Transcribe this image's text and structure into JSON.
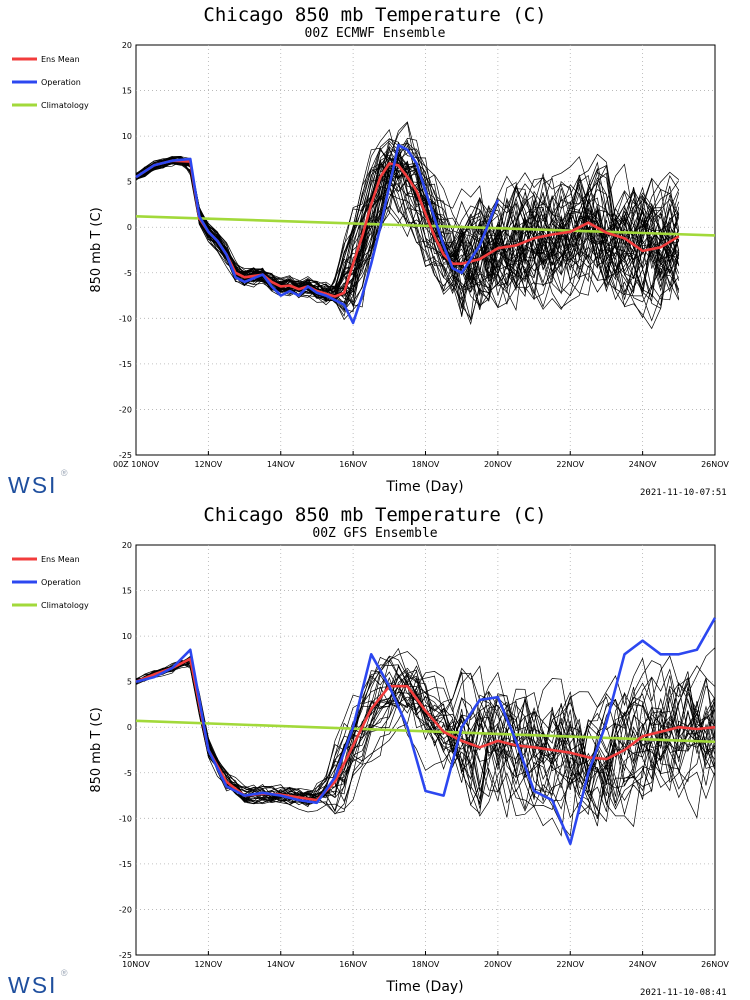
{
  "colors": {
    "ens_mean": "#f23c3c",
    "operation": "#2c47f0",
    "climatology": "#a2d93a",
    "members": "#000000",
    "grid": "#b0b0b0",
    "brand": "#1f4f9e"
  },
  "brand": {
    "logo_text": "WSI",
    "reg_mark": "®"
  },
  "chart_data": [
    {
      "type": "line",
      "title": "Chicago 850 mb Temperature (C)",
      "subtitle": "00Z ECMWF Ensemble",
      "xlabel": "Time (Day)",
      "ylabel": "850 mb T (C)",
      "x_tick_labels": [
        "00Z 10NOV",
        "12NOV",
        "14NOV",
        "16NOV",
        "18NOV",
        "20NOV",
        "22NOV",
        "24NOV",
        "26NOV"
      ],
      "x_tick_days": [
        10,
        12,
        14,
        16,
        18,
        20,
        22,
        24,
        26
      ],
      "xlim_days": [
        10,
        26
      ],
      "ylim": [
        -25,
        20
      ],
      "y_ticks": [
        -25,
        -20,
        -15,
        -10,
        -5,
        0,
        5,
        10,
        15,
        20
      ],
      "grid": true,
      "legend_position": "left",
      "timestamp": "2021-11-10-07:51",
      "members": {
        "count": 50,
        "end_day": 25,
        "last_lo_day": 15,
        "chaos_amp": 8,
        "seed": 11
      },
      "series": [
        {
          "name": "Ens Mean",
          "color_key": "ens_mean",
          "x": [
            10,
            10.5,
            11,
            11.5,
            11.75,
            12,
            12.25,
            12.5,
            12.75,
            13,
            13.5,
            13.75,
            14,
            14.25,
            14.5,
            14.75,
            15,
            15.25,
            15.5,
            15.75,
            16,
            16.25,
            16.5,
            16.75,
            17,
            17.25,
            17.5,
            17.75,
            18,
            18.25,
            18.5,
            18.75,
            19,
            19.5,
            20,
            20.5,
            21,
            21.5,
            22,
            22.5,
            23,
            23.5,
            24,
            24.5,
            25
          ],
          "y": [
            5.5,
            6.8,
            7.3,
            7.2,
            1,
            -0.5,
            -1.5,
            -3,
            -5,
            -5.5,
            -5.2,
            -6,
            -6.5,
            -6.4,
            -6.8,
            -6.5,
            -7,
            -7.3,
            -7.6,
            -7.2,
            -4,
            -1,
            2.5,
            5.5,
            7,
            6.8,
            5.5,
            4,
            1.5,
            -1,
            -3,
            -4,
            -4,
            -3.5,
            -2.3,
            -2,
            -1.2,
            -0.8,
            -0.5,
            0.5,
            -0.6,
            -1.2,
            -2.6,
            -2.2,
            -1
          ]
        },
        {
          "name": "Operation",
          "color_key": "operation",
          "x": [
            10,
            10.5,
            11,
            11.5,
            11.75,
            12,
            12.25,
            12.5,
            12.75,
            13,
            13.5,
            13.75,
            14,
            14.25,
            14.5,
            14.75,
            15,
            15.25,
            15.5,
            15.75,
            16,
            16.25,
            16.5,
            16.75,
            17,
            17.25,
            17.5,
            17.75,
            18,
            18.25,
            18.5,
            18.75,
            19,
            19.5,
            20
          ],
          "y": [
            5.5,
            6.8,
            7.3,
            7.5,
            1.2,
            -0.5,
            -1.5,
            -3,
            -5.5,
            -6,
            -5.2,
            -6.5,
            -7.5,
            -7,
            -7.5,
            -6.5,
            -7.2,
            -7.5,
            -8,
            -8.5,
            -10.5,
            -7.5,
            -4,
            0,
            4.5,
            9,
            8.5,
            7,
            4,
            1,
            -2,
            -4.5,
            -5,
            -2,
            3
          ]
        },
        {
          "name": "Climatology",
          "color_key": "climatology",
          "x": [
            10,
            26
          ],
          "y": [
            1.2,
            -0.9
          ]
        }
      ]
    },
    {
      "type": "line",
      "title": "Chicago 850 mb Temperature (C)",
      "subtitle": "00Z GFS Ensemble",
      "xlabel": "Time (Day)",
      "ylabel": "850 mb T (C)",
      "x_tick_labels": [
        "10NOV",
        "12NOV",
        "14NOV",
        "16NOV",
        "18NOV",
        "20NOV",
        "22NOV",
        "24NOV",
        "26NOV"
      ],
      "x_tick_days": [
        10,
        12,
        14,
        16,
        18,
        20,
        22,
        24,
        26
      ],
      "xlim_days": [
        10,
        26
      ],
      "ylim": [
        -25,
        20
      ],
      "y_ticks": [
        -25,
        -20,
        -15,
        -10,
        -5,
        0,
        5,
        10,
        15,
        20
      ],
      "grid": true,
      "legend_position": "left",
      "timestamp": "2021-11-10-08:41",
      "members": {
        "count": 30,
        "end_day": 26,
        "last_lo_day": 14.75,
        "chaos_amp": 8.5,
        "seed": 29
      },
      "series": [
        {
          "name": "Ens Mean",
          "color_key": "ens_mean",
          "x": [
            10,
            10.5,
            11,
            11.5,
            12,
            12.5,
            13,
            13.5,
            14,
            14.5,
            15,
            15.5,
            16,
            16.5,
            17,
            17.5,
            18,
            18.5,
            19,
            19.5,
            20,
            20.5,
            21,
            21.5,
            22,
            22.5,
            23,
            23.5,
            24,
            24.5,
            25,
            25.5,
            26
          ],
          "y": [
            5,
            5.8,
            6.5,
            7.5,
            -2.5,
            -6,
            -7.5,
            -7.3,
            -7.4,
            -7.7,
            -8,
            -6,
            -2,
            2,
            4.5,
            4.5,
            1.8,
            -0.5,
            -1.5,
            -2.2,
            -1.5,
            -2,
            -2.2,
            -2.5,
            -2.8,
            -3.3,
            -3.5,
            -2.5,
            -1,
            -0.5,
            0,
            -0.2,
            0
          ]
        },
        {
          "name": "Operation",
          "color_key": "operation",
          "x": [
            10,
            10.5,
            11,
            11.5,
            12,
            12.5,
            13,
            13.5,
            14,
            14.5,
            15,
            15.5,
            16,
            16.5,
            17,
            17.5,
            18,
            18.5,
            19,
            19.5,
            20,
            20.5,
            21,
            21.5,
            22,
            22.5,
            23,
            23.5,
            24,
            24.5,
            25,
            25.5,
            26
          ],
          "y": [
            5,
            5.5,
            6.5,
            8.5,
            -2.5,
            -6.5,
            -7.5,
            -7.2,
            -7.5,
            -8,
            -8.3,
            -5.5,
            0,
            8,
            4.5,
            0,
            -7,
            -7.5,
            0,
            3,
            3.3,
            -1.5,
            -7,
            -8,
            -12.8,
            -5,
            0.5,
            8,
            9.5,
            8,
            8,
            8.5,
            12
          ]
        },
        {
          "name": "Climatology",
          "color_key": "climatology",
          "x": [
            10,
            26
          ],
          "y": [
            0.7,
            -1.6
          ]
        }
      ]
    }
  ]
}
